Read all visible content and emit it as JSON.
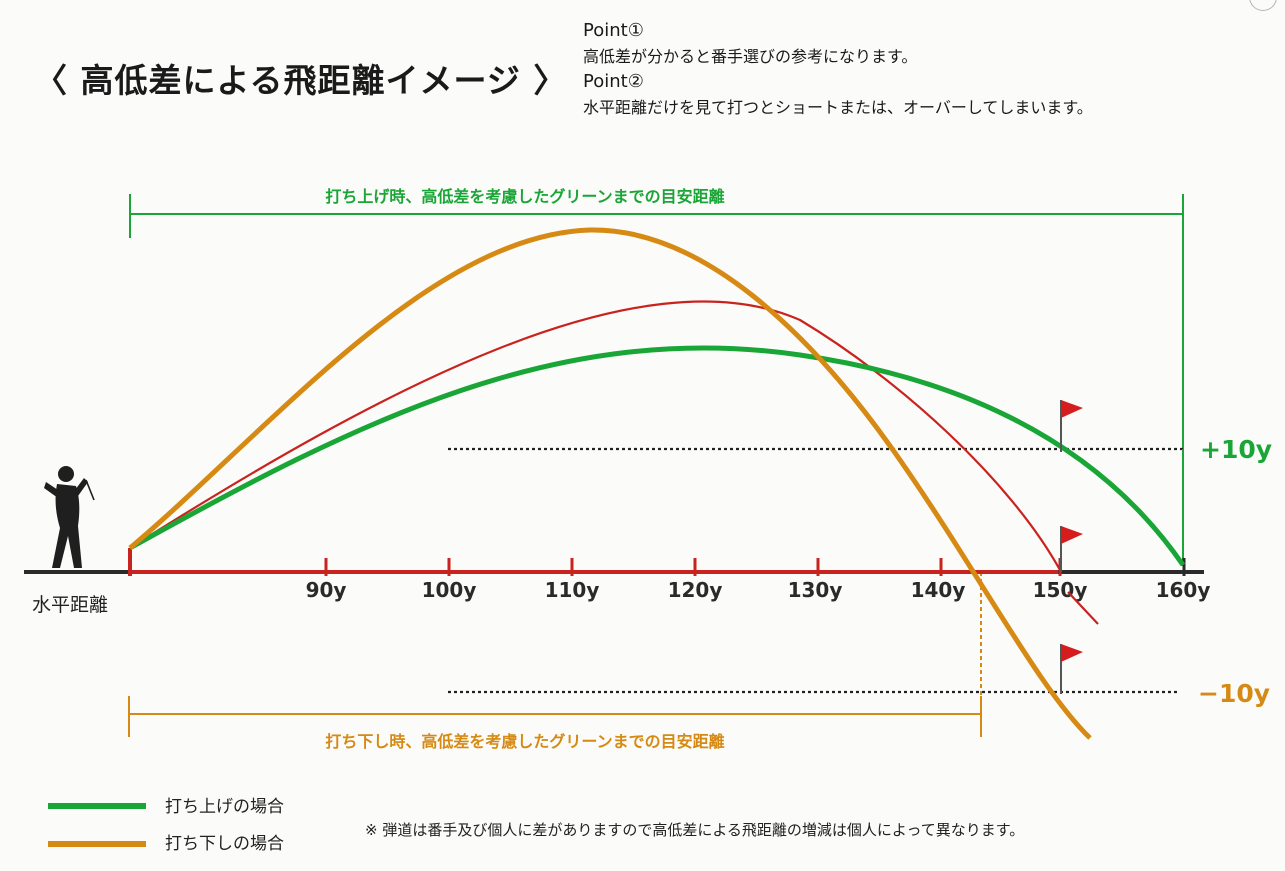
{
  "title": "〈 高低差による飛距離イメージ 〉",
  "points": [
    {
      "heading": "Point①",
      "text": "高低差が分かると番手選びの参考になります。"
    },
    {
      "heading": "Point②",
      "text": "水平距離だけを見て打つとショートまたは、オーバーしてしまいます。"
    }
  ],
  "axis": {
    "title": "水平距離",
    "ticks": [
      "90y",
      "100y",
      "110y",
      "120y",
      "130y",
      "140y",
      "150y",
      "160y"
    ]
  },
  "spans": {
    "uphill": "打ち上げ時、高低差を考慮したグリーンまでの目安距離",
    "downhill": "打ち下し時、高低差を考慮したグリーンまでの目安距離"
  },
  "elevation": {
    "plus": "+10y",
    "minus": "−10y"
  },
  "legend": [
    {
      "label": "打ち上げの場合",
      "color": "#1aa637"
    },
    {
      "label": "打ち下しの場合",
      "color": "#d68a14"
    }
  ],
  "note": "※ 弾道は番手及び個人に差がありますので高低差による飛距離の増減は個人によって異なります。",
  "colors": {
    "uphill": "#1aa637",
    "downhill": "#d68a14",
    "level": "#c8231e",
    "axis_line": "#2b2b2b",
    "axis_red": "#c8231e",
    "flag": "#d61d1d"
  },
  "icons": [
    "golfer-icon",
    "flag-icon"
  ]
}
